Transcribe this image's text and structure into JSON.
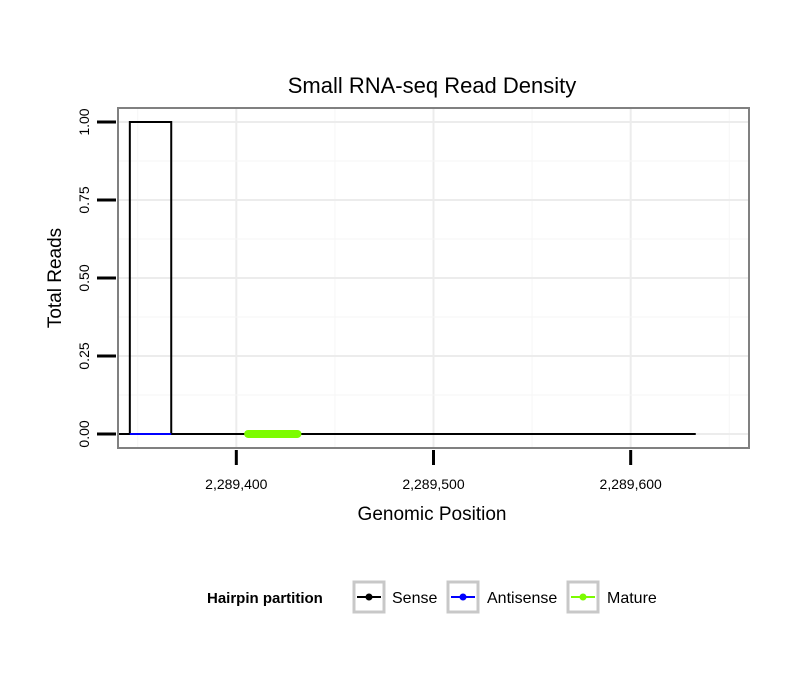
{
  "chart_data": {
    "type": "line",
    "title": "Small RNA-seq Read Density",
    "xlabel": "Genomic Position",
    "ylabel": "Total Reads",
    "xlim": [
      2289340,
      2289660
    ],
    "ylim": [
      -0.045,
      1.045
    ],
    "x_ticks": [
      2289400,
      2289500,
      2289600
    ],
    "x_tick_labels": [
      "2,289,400",
      "2,289,500",
      "2,289,600"
    ],
    "y_ticks": [
      0,
      0.25,
      0.5,
      0.75,
      1
    ],
    "y_tick_labels": [
      "0.00",
      "0.25",
      "0.50",
      "0.75",
      "1.00"
    ],
    "grid": true,
    "legend": {
      "title": "Hairpin partition",
      "position": "bottom",
      "entries": [
        {
          "label": "Sense",
          "color": "#000000"
        },
        {
          "label": "Antisense",
          "color": "#0000ff"
        },
        {
          "label": "Mature",
          "color": "#7cfc00"
        }
      ]
    },
    "series": [
      {
        "name": "Sense",
        "color": "#000000",
        "points": [
          [
            2289340,
            0
          ],
          [
            2289346,
            0
          ],
          [
            2289346,
            1
          ],
          [
            2289367,
            1
          ],
          [
            2289367,
            0
          ],
          [
            2289633,
            0
          ]
        ]
      },
      {
        "name": "Antisense",
        "color": "#0000ff",
        "points": [
          [
            2289346,
            0
          ],
          [
            2289367,
            0
          ]
        ]
      },
      {
        "name": "Mature",
        "color": "#7cfc00",
        "points": [
          [
            2289406,
            0
          ],
          [
            2289431,
            0
          ]
        ]
      }
    ]
  }
}
